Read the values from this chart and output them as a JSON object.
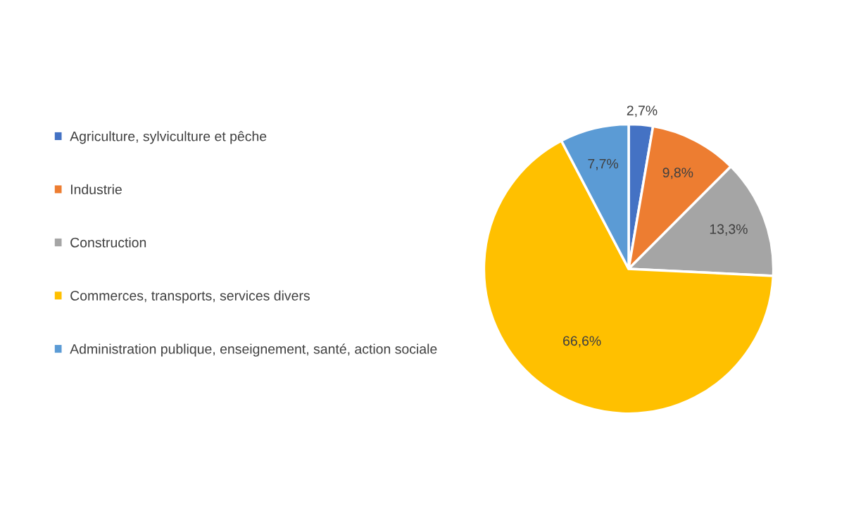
{
  "chart_data": {
    "type": "pie",
    "categories": [
      "Agriculture, sylviculture et pêche",
      "Industrie",
      "Construction",
      "Commerces, transports, services divers",
      "Administration publique, enseignement, santé, action sociale"
    ],
    "values": [
      2.7,
      9.8,
      13.3,
      66.6,
      7.7
    ],
    "colors": [
      "#4472c4",
      "#ed7d31",
      "#a5a5a5",
      "#ffc000",
      "#5b9bd5"
    ],
    "value_labels": [
      "2,7%",
      "9,8%",
      "13,3%",
      "66,6%",
      "7,7%"
    ],
    "legend": "left"
  }
}
